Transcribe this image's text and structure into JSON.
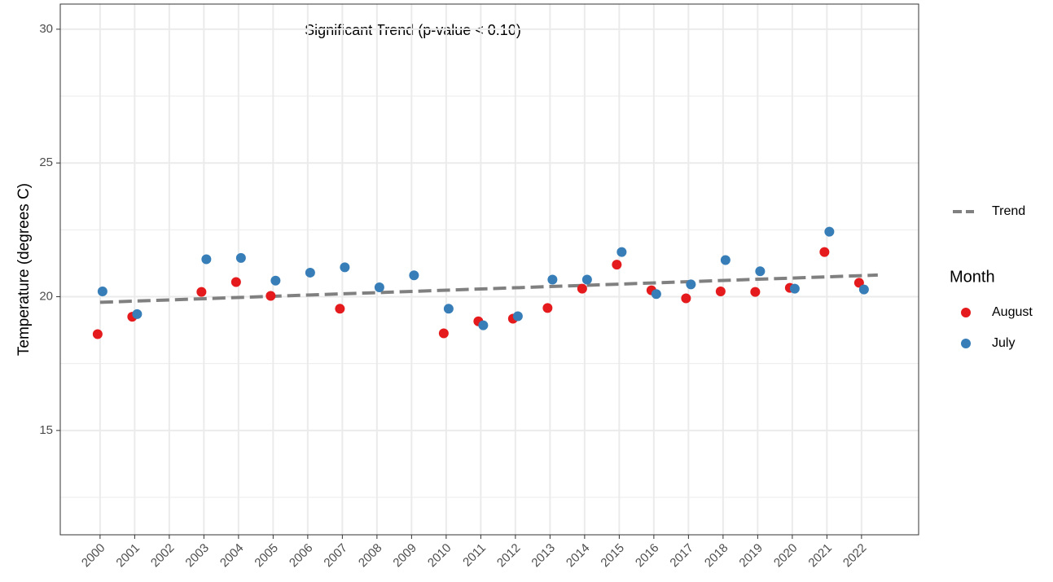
{
  "chart_data": {
    "type": "scatter",
    "y_label": "Temperature (degrees C)",
    "annotation": "Significant Trend (p-value < 0.10)",
    "x": [
      2000,
      2001,
      2002,
      2003,
      2004,
      2005,
      2006,
      2007,
      2008,
      2009,
      2010,
      2011,
      2012,
      2013,
      2014,
      2015,
      2016,
      2017,
      2018,
      2019,
      2020,
      2021,
      2022
    ],
    "series": [
      {
        "name": "August",
        "color": "#e41a1c",
        "values": [
          18.6,
          19.25,
          null,
          20.18,
          20.55,
          20.03,
          null,
          19.55,
          null,
          null,
          18.63,
          19.08,
          19.18,
          19.58,
          20.3,
          21.2,
          20.24,
          19.94,
          20.2,
          20.18,
          20.33,
          21.67,
          20.52
        ]
      },
      {
        "name": "July",
        "color": "#377eb8",
        "values": [
          20.2,
          19.35,
          null,
          21.4,
          21.45,
          20.6,
          20.9,
          21.1,
          20.35,
          20.8,
          19.55,
          18.93,
          19.27,
          20.64,
          20.64,
          21.67,
          20.1,
          20.46,
          21.37,
          20.95,
          20.3,
          22.43,
          20.27
        ]
      }
    ],
    "trend": {
      "name": "Trend",
      "color": "#808080",
      "x": [
        2000,
        2022.47
      ],
      "values": [
        19.79,
        20.81
      ]
    },
    "legend_title": "Month",
    "xlim": [
      1998.85,
      2023.65
    ],
    "xticks": [
      2000,
      2001,
      2002,
      2003,
      2004,
      2005,
      2006,
      2007,
      2008,
      2009,
      2010,
      2011,
      2012,
      2013,
      2014,
      2015,
      2016,
      2017,
      2018,
      2019,
      2020,
      2021,
      2022
    ],
    "ylim": [
      11.1,
      30.94
    ],
    "yticks": [
      15,
      20,
      25,
      30
    ],
    "yminor": [
      12.5,
      17.5,
      22.5,
      27.5
    ],
    "grid": true
  }
}
